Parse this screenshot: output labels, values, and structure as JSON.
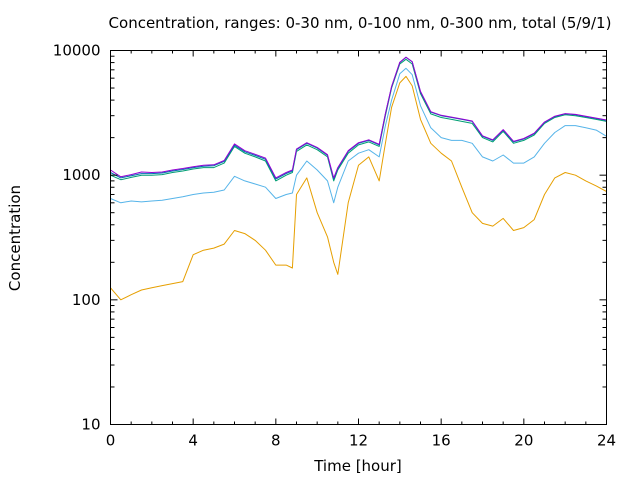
{
  "chart_data": {
    "type": "line",
    "title": "Concentration, ranges: 0-30 nm, 0-100 nm, 0-300 nm, total (5/9/1)",
    "xlabel": "Time [hour]",
    "ylabel": "Concentration",
    "xlim": [
      0,
      24
    ],
    "ylim": [
      10,
      10000
    ],
    "yscale": "log",
    "x_ticks": [
      0,
      4,
      8,
      12,
      16,
      20,
      24
    ],
    "x_tick_labels": [
      "0",
      "4",
      "8",
      "12",
      "16",
      "20",
      "24"
    ],
    "y_ticks": [
      10,
      100,
      1000,
      10000
    ],
    "y_tick_labels": [
      "10",
      "100",
      "1000",
      "10000"
    ],
    "grid": false,
    "legend": "none",
    "x": [
      0,
      0.5,
      1,
      1.5,
      2,
      2.5,
      3,
      3.5,
      4,
      4.5,
      5,
      5.5,
      6,
      6.5,
      7,
      7.5,
      8,
      8.5,
      8.8,
      9,
      9.5,
      10,
      10.5,
      10.8,
      11,
      11.5,
      12,
      12.5,
      13,
      13.3,
      13.6,
      14,
      14.3,
      14.6,
      15,
      15.5,
      16,
      16.5,
      17,
      17.5,
      18,
      18.5,
      19,
      19.5,
      20,
      20.5,
      21,
      21.5,
      22,
      22.5,
      23,
      23.5,
      24
    ],
    "series": [
      {
        "color": "#e69f00",
        "values": [
          125,
          100,
          110,
          120,
          125,
          130,
          135,
          140,
          230,
          250,
          260,
          280,
          360,
          340,
          300,
          250,
          190,
          190,
          180,
          700,
          950,
          500,
          320,
          200,
          160,
          600,
          1200,
          1400,
          900,
          1800,
          3500,
          5500,
          6200,
          5200,
          2800,
          1800,
          1500,
          1300,
          800,
          500,
          410,
          390,
          450,
          360,
          380,
          440,
          700,
          950,
          1050,
          1000,
          900,
          820,
          740
        ]
      },
      {
        "color": "#56b4e9",
        "values": [
          650,
          600,
          620,
          610,
          620,
          630,
          650,
          670,
          700,
          720,
          730,
          760,
          980,
          900,
          850,
          800,
          650,
          700,
          720,
          1000,
          1300,
          1100,
          900,
          600,
          800,
          1300,
          1500,
          1600,
          1400,
          2500,
          4000,
          6500,
          7200,
          6400,
          3600,
          2400,
          2000,
          1900,
          1900,
          1800,
          1400,
          1300,
          1450,
          1250,
          1250,
          1400,
          1800,
          2200,
          2500,
          2500,
          2400,
          2300,
          2050
        ]
      },
      {
        "color": "#009e73",
        "values": [
          1000,
          920,
          960,
          1000,
          1000,
          1010,
          1050,
          1080,
          1120,
          1150,
          1150,
          1250,
          1700,
          1500,
          1400,
          1300,
          900,
          1000,
          1050,
          1550,
          1750,
          1600,
          1400,
          900,
          1100,
          1500,
          1750,
          1850,
          1700,
          3000,
          5000,
          7800,
          8500,
          7800,
          4500,
          3100,
          2900,
          2800,
          2700,
          2600,
          2000,
          1850,
          2250,
          1800,
          1900,
          2100,
          2600,
          2900,
          3050,
          3000,
          2900,
          2800,
          2700
        ]
      },
      {
        "color": "#0072b2",
        "values": [
          1050,
          950,
          990,
          1030,
          1030,
          1040,
          1080,
          1110,
          1150,
          1180,
          1190,
          1290,
          1740,
          1540,
          1440,
          1340,
          930,
          1030,
          1080,
          1600,
          1800,
          1650,
          1440,
          930,
          1130,
          1550,
          1800,
          1900,
          1750,
          3100,
          5100,
          8000,
          8800,
          8100,
          4650,
          3200,
          3000,
          2900,
          2800,
          2700,
          2050,
          1900,
          2300,
          1850,
          1950,
          2150,
          2650,
          2950,
          3100,
          3050,
          2950,
          2850,
          2750
        ]
      },
      {
        "color": "#9400d3",
        "values": [
          1100,
          970,
          1010,
          1060,
          1050,
          1060,
          1100,
          1130,
          1170,
          1200,
          1210,
          1310,
          1780,
          1570,
          1470,
          1370,
          950,
          1050,
          1100,
          1620,
          1820,
          1670,
          1460,
          950,
          1150,
          1570,
          1820,
          1920,
          1770,
          3120,
          5150,
          8050,
          8850,
          8150,
          4700,
          3230,
          3020,
          2920,
          2820,
          2720,
          2070,
          1920,
          2320,
          1870,
          1970,
          2170,
          2670,
          2970,
          3120,
          3070,
          2970,
          2870,
          2770
        ]
      }
    ]
  }
}
